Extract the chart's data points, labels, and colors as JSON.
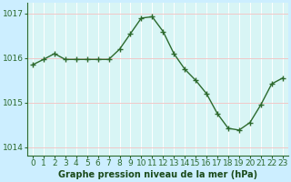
{
  "x": [
    0,
    1,
    2,
    3,
    4,
    5,
    6,
    7,
    8,
    9,
    10,
    11,
    12,
    13,
    14,
    15,
    16,
    17,
    18,
    19,
    20,
    21,
    22,
    23
  ],
  "y": [
    1015.85,
    1015.97,
    1016.1,
    1015.97,
    1015.97,
    1015.97,
    1015.97,
    1015.97,
    1016.2,
    1016.55,
    1016.9,
    1016.93,
    1016.6,
    1016.1,
    1015.75,
    1015.5,
    1015.2,
    1014.75,
    1014.42,
    1014.38,
    1014.55,
    1014.95,
    1015.42,
    1015.55
  ],
  "line_color": "#2d6a2d",
  "marker": "+",
  "marker_size": 4,
  "line_width": 1.0,
  "bg_color": "#cceeff",
  "plot_bg_color": "#d8f5f5",
  "grid_color_v": "#ffffff",
  "grid_color_h": "#f0c8c8",
  "xlabel": "Graphe pression niveau de la mer (hPa)",
  "xlabel_color": "#1a4a1a",
  "xlabel_fontsize": 7,
  "ylabel_ticks": [
    1014,
    1015,
    1016,
    1017
  ],
  "ytick_color": "#2d6a2d",
  "xtick_labels": [
    "0",
    "1",
    "2",
    "3",
    "4",
    "5",
    "6",
    "7",
    "8",
    "9",
    "10",
    "11",
    "12",
    "13",
    "14",
    "15",
    "16",
    "17",
    "18",
    "19",
    "20",
    "21",
    "22",
    "23"
  ],
  "ylim": [
    1013.8,
    1017.25
  ],
  "xlim": [
    -0.5,
    23.5
  ],
  "tick_fontsize": 6.5,
  "axis_color": "#2d6a2d"
}
